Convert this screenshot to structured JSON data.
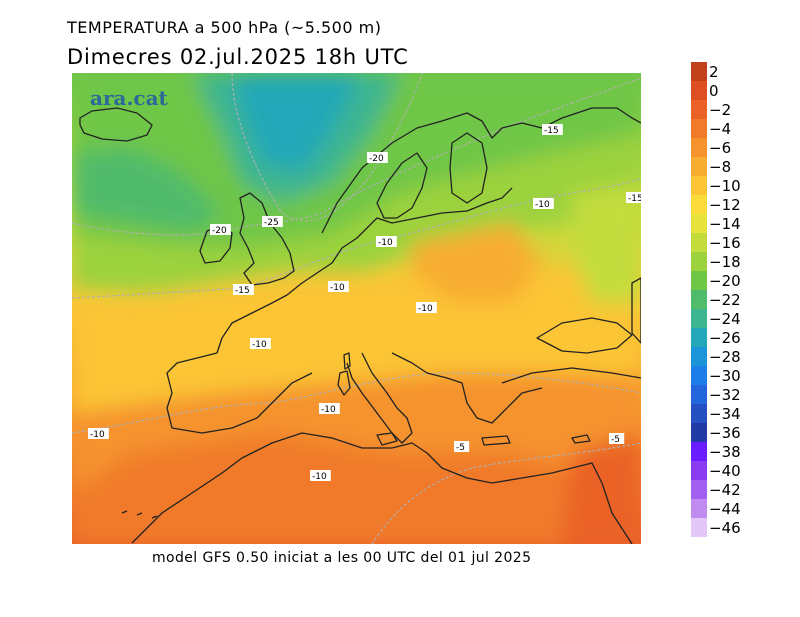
{
  "header": {
    "title": "TEMPERATURA a 500 hPa (~5.500 m)",
    "subtitle": "Dimecres  02.jul.2025 18h UTC"
  },
  "footer": {
    "text": "model GFS 0.50 iniciat a les 00 UTC del 01 jul 2025"
  },
  "map": {
    "watermark": "ara.cat",
    "variable": "temperature",
    "level_hpa": 500,
    "unit": "°C",
    "contour_labels": [
      "-25",
      "-20",
      "-20",
      "-15",
      "-15",
      "-15",
      "-10",
      "-10",
      "-10",
      "-10",
      "-10",
      "-10",
      "-10",
      "-10",
      "-5",
      "-5"
    ]
  },
  "legend": {
    "items": [
      {
        "label": "2",
        "color": "#c0411a"
      },
      {
        "label": "0",
        "color": "#dd4f22"
      },
      {
        "label": "−2",
        "color": "#ea6228"
      },
      {
        "label": "−4",
        "color": "#f07a2a"
      },
      {
        "label": "−6",
        "color": "#f5932d"
      },
      {
        "label": "−8",
        "color": "#f8ad30"
      },
      {
        "label": "−10",
        "color": "#fbc536"
      },
      {
        "label": "−12",
        "color": "#fbdb3a"
      },
      {
        "label": "−14",
        "color": "#e7e23c"
      },
      {
        "label": "−16",
        "color": "#c3dc3c"
      },
      {
        "label": "−18",
        "color": "#9bd23d"
      },
      {
        "label": "−20",
        "color": "#6fc647"
      },
      {
        "label": "−22",
        "color": "#4fbb6b"
      },
      {
        "label": "−24",
        "color": "#3cb590"
      },
      {
        "label": "−26",
        "color": "#22a8b8"
      },
      {
        "label": "−28",
        "color": "#1c95d8"
      },
      {
        "label": "−30",
        "color": "#1f7fe8"
      },
      {
        "label": "−32",
        "color": "#2466db"
      },
      {
        "label": "−34",
        "color": "#2450c2"
      },
      {
        "label": "−36",
        "color": "#223aa6"
      },
      {
        "label": "−38",
        "color": "#6a1dff"
      },
      {
        "label": "−40",
        "color": "#8a3cf2"
      },
      {
        "label": "−42",
        "color": "#a35ef2"
      },
      {
        "label": "−44",
        "color": "#c08cf2"
      },
      {
        "label": "−46",
        "color": "#e2c8f6"
      }
    ]
  }
}
